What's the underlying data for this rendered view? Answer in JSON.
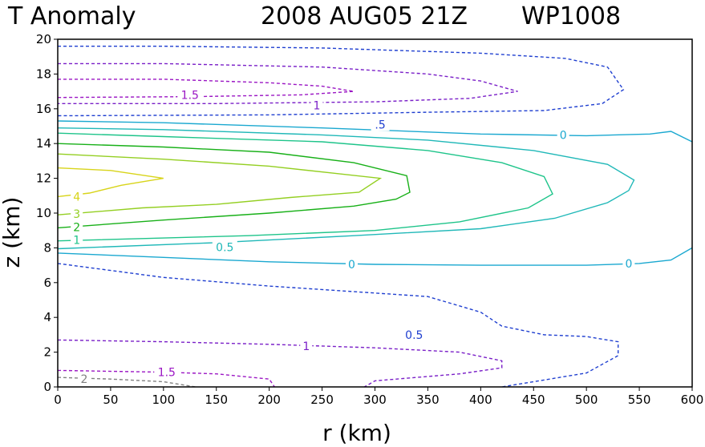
{
  "header": {
    "title_left": "T Anomaly",
    "title_time": "2008 AUG05 21Z",
    "title_storm": "WP1008"
  },
  "chart_data": {
    "type": "contour",
    "title": "T Anomaly    2008 AUG05 21Z   WP1008",
    "xlabel": "r (km)",
    "ylabel": "z (km)",
    "xlim": [
      0,
      600
    ],
    "ylim": [
      0,
      20
    ],
    "xticks": [
      0,
      50,
      100,
      150,
      200,
      250,
      300,
      350,
      400,
      450,
      500,
      550,
      600
    ],
    "yticks": [
      0,
      2,
      4,
      6,
      8,
      10,
      12,
      14,
      16,
      18,
      20
    ],
    "contours": [
      {
        "level": -0.5,
        "color": "#1f3fd0",
        "dashed": true,
        "part": "upper",
        "points": [
          [
            0,
            19.6
          ],
          [
            100,
            19.6
          ],
          [
            250,
            19.5
          ],
          [
            400,
            19.2
          ],
          [
            480,
            18.9
          ],
          [
            520,
            18.4
          ],
          [
            535,
            17.1
          ],
          [
            515,
            16.3
          ],
          [
            460,
            15.9
          ],
          [
            350,
            15.8
          ],
          [
            200,
            15.65
          ],
          [
            0,
            15.6
          ]
        ]
      },
      {
        "level": -1,
        "color": "#7a1fc8",
        "dashed": true,
        "part": "upper",
        "points": [
          [
            0,
            18.6
          ],
          [
            100,
            18.6
          ],
          [
            250,
            18.4
          ],
          [
            350,
            18.0
          ],
          [
            400,
            17.6
          ],
          [
            435,
            17.0
          ],
          [
            390,
            16.6
          ],
          [
            300,
            16.4
          ],
          [
            150,
            16.3
          ],
          [
            0,
            16.3
          ]
        ]
      },
      {
        "level": -1.5,
        "color": "#9b16c4",
        "dashed": true,
        "part": "upper",
        "points": [
          [
            0,
            17.7
          ],
          [
            100,
            17.7
          ],
          [
            200,
            17.5
          ],
          [
            250,
            17.3
          ],
          [
            280,
            17.0
          ],
          [
            230,
            16.8
          ],
          [
            130,
            16.7
          ],
          [
            0,
            16.65
          ]
        ]
      },
      {
        "level": 0,
        "color": "#1aa8d0",
        "dashed": false,
        "part": "upper",
        "points": [
          [
            0,
            15.3
          ],
          [
            100,
            15.2
          ],
          [
            250,
            14.9
          ],
          [
            400,
            14.55
          ],
          [
            500,
            14.45
          ],
          [
            560,
            14.55
          ],
          [
            580,
            14.7
          ],
          [
            600,
            14.1
          ]
        ]
      },
      {
        "level": 0.5,
        "color": "#20b8b8",
        "dashed": false,
        "part": "mid",
        "points": [
          [
            0,
            14.9
          ],
          [
            100,
            14.8
          ],
          [
            250,
            14.5
          ],
          [
            350,
            14.2
          ],
          [
            450,
            13.6
          ],
          [
            520,
            12.8
          ],
          [
            545,
            11.9
          ],
          [
            540,
            11.3
          ],
          [
            520,
            10.6
          ],
          [
            470,
            9.7
          ],
          [
            400,
            9.1
          ],
          [
            280,
            8.7
          ],
          [
            150,
            8.3
          ],
          [
            0,
            7.95
          ]
        ]
      },
      {
        "level": 1,
        "color": "#1ec48a",
        "dashed": false,
        "part": "mid",
        "points": [
          [
            0,
            14.6
          ],
          [
            100,
            14.4
          ],
          [
            250,
            14.1
          ],
          [
            350,
            13.6
          ],
          [
            420,
            12.9
          ],
          [
            460,
            12.1
          ],
          [
            468,
            11.1
          ],
          [
            445,
            10.3
          ],
          [
            380,
            9.5
          ],
          [
            300,
            9.0
          ],
          [
            180,
            8.7
          ],
          [
            0,
            8.4
          ]
        ]
      },
      {
        "level": 2,
        "color": "#18b018",
        "dashed": false,
        "part": "mid",
        "points": [
          [
            0,
            14.0
          ],
          [
            100,
            13.8
          ],
          [
            200,
            13.5
          ],
          [
            280,
            12.9
          ],
          [
            330,
            12.15
          ],
          [
            333,
            11.2
          ],
          [
            320,
            10.8
          ],
          [
            280,
            10.4
          ],
          [
            200,
            10.0
          ],
          [
            100,
            9.6
          ],
          [
            0,
            9.15
          ]
        ]
      },
      {
        "level": 3,
        "color": "#94cf22",
        "dashed": false,
        "part": "mid",
        "points": [
          [
            0,
            13.4
          ],
          [
            100,
            13.1
          ],
          [
            200,
            12.7
          ],
          [
            260,
            12.3
          ],
          [
            305,
            12.0
          ],
          [
            285,
            11.2
          ],
          [
            220,
            10.9
          ],
          [
            150,
            10.5
          ],
          [
            80,
            10.3
          ],
          [
            0,
            9.9
          ]
        ]
      },
      {
        "level": 4,
        "color": "#d8d41a",
        "dashed": false,
        "part": "mid",
        "points": [
          [
            0,
            12.6
          ],
          [
            50,
            12.45
          ],
          [
            100,
            12.0
          ],
          [
            60,
            11.6
          ],
          [
            30,
            11.15
          ],
          [
            0,
            10.95
          ]
        ]
      },
      {
        "level": 0,
        "color": "#1aa8d0",
        "dashed": false,
        "part": "lower",
        "points": [
          [
            0,
            7.7
          ],
          [
            100,
            7.45
          ],
          [
            200,
            7.2
          ],
          [
            300,
            7.05
          ],
          [
            400,
            7.0
          ],
          [
            500,
            7.0
          ],
          [
            550,
            7.1
          ],
          [
            580,
            7.3
          ],
          [
            600,
            8.0
          ]
        ]
      },
      {
        "level": -0.5,
        "color": "#1f3fd0",
        "dashed": true,
        "part": "lower",
        "points": [
          [
            0,
            7.1
          ],
          [
            50,
            6.7
          ],
          [
            100,
            6.3
          ],
          [
            200,
            5.8
          ],
          [
            300,
            5.4
          ],
          [
            350,
            5.2
          ],
          [
            400,
            4.3
          ],
          [
            420,
            3.5
          ],
          [
            460,
            3.0
          ],
          [
            500,
            2.9
          ],
          [
            530,
            2.6
          ],
          [
            530,
            1.8
          ],
          [
            500,
            0.8
          ],
          [
            450,
            0.3
          ],
          [
            420,
            0.0
          ]
        ]
      },
      {
        "level": -1,
        "color": "#7a1fc8",
        "dashed": true,
        "part": "lower",
        "points": [
          [
            0,
            2.7
          ],
          [
            100,
            2.6
          ],
          [
            200,
            2.45
          ],
          [
            300,
            2.25
          ],
          [
            380,
            2.0
          ],
          [
            420,
            1.5
          ],
          [
            420,
            1.1
          ],
          [
            380,
            0.75
          ],
          [
            300,
            0.35
          ],
          [
            290,
            0.0
          ]
        ]
      },
      {
        "level": -1.5,
        "color": "#9b16c4",
        "dashed": true,
        "part": "lower",
        "points": [
          [
            0,
            0.95
          ],
          [
            100,
            0.85
          ],
          [
            150,
            0.75
          ],
          [
            200,
            0.45
          ],
          [
            205,
            0.0
          ]
        ]
      },
      {
        "level": -2,
        "color": "#808080",
        "dashed": true,
        "part": "lower",
        "points": [
          [
            0,
            0.55
          ],
          [
            50,
            0.45
          ],
          [
            100,
            0.3
          ],
          [
            130,
            0.0
          ]
        ]
      }
    ],
    "labels": [
      {
        "text": "1.5",
        "r": 125,
        "z": 16.8,
        "color": "#9b16c4"
      },
      {
        "text": "1",
        "r": 245,
        "z": 16.2,
        "color": "#7a1fc8"
      },
      {
        "text": ".5",
        "r": 305,
        "z": 15.1,
        "color": "#1f3fd0"
      },
      {
        "text": "0",
        "r": 478,
        "z": 14.5,
        "color": "#1aa8d0"
      },
      {
        "text": "4",
        "r": 18,
        "z": 10.95,
        "color": "#d8d41a"
      },
      {
        "text": "3",
        "r": 18,
        "z": 9.95,
        "color": "#94cf22"
      },
      {
        "text": "2",
        "r": 18,
        "z": 9.2,
        "color": "#18b018"
      },
      {
        "text": "1",
        "r": 18,
        "z": 8.45,
        "color": "#1ec48a"
      },
      {
        "text": "0.5",
        "r": 158,
        "z": 8.05,
        "color": "#20b8b8"
      },
      {
        "text": "0",
        "r": 278,
        "z": 7.05,
        "color": "#1aa8d0"
      },
      {
        "text": "0",
        "r": 540,
        "z": 7.1,
        "color": "#1aa8d0"
      },
      {
        "text": "0.5",
        "r": 337,
        "z": 3.0,
        "color": "#1f3fd0"
      },
      {
        "text": "1",
        "r": 235,
        "z": 2.35,
        "color": "#7a1fc8"
      },
      {
        "text": "1.5",
        "r": 103,
        "z": 0.85,
        "color": "#9b16c4"
      },
      {
        "text": "2",
        "r": 25,
        "z": 0.45,
        "color": "#808080"
      }
    ]
  }
}
